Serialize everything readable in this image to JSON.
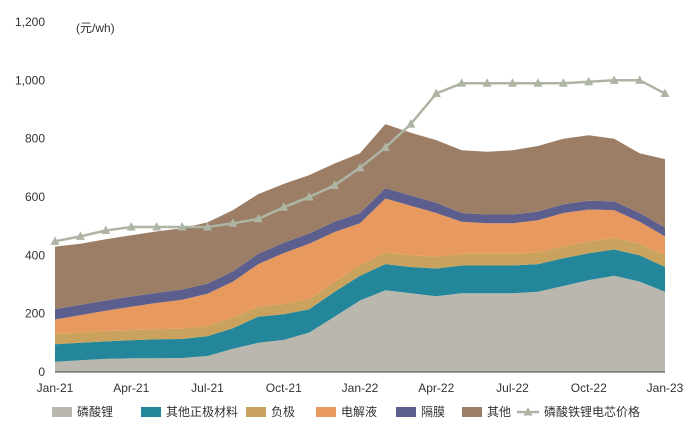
{
  "chart_data": {
    "type": "area",
    "unit_label": "(元/wh)",
    "y_ticks": [
      "0",
      "200",
      "400",
      "600",
      "800",
      "1,000",
      "1,200"
    ],
    "ylim": [
      0,
      1200
    ],
    "x_tick_labels": [
      "Jan-21",
      "Apr-21",
      "Jul-21",
      "Oct-21",
      "Jan-22",
      "Apr-22",
      "Jul-22",
      "Oct-22",
      "Jan-23"
    ],
    "x_tick_index": [
      0,
      3,
      6,
      9,
      12,
      15,
      18,
      21,
      24
    ],
    "stack_series": [
      {
        "name": "磷酸锂",
        "color": "#BAB8AE",
        "values": [
          35,
          40,
          45,
          47,
          47,
          48,
          55,
          80,
          100,
          110,
          135,
          190,
          245,
          280,
          270,
          260,
          270,
          270,
          270,
          275,
          295,
          315,
          330,
          310,
          275
        ]
      },
      {
        "name": "其他正极材料",
        "color": "#23869A",
        "values": [
          60,
          60,
          60,
          62,
          65,
          65,
          68,
          70,
          90,
          88,
          80,
          85,
          85,
          90,
          90,
          95,
          95,
          95,
          95,
          95,
          95,
          92,
          90,
          90,
          85
        ]
      },
      {
        "name": "负极",
        "color": "#C9A35E",
        "values": [
          35,
          35,
          35,
          35,
          35,
          35,
          35,
          35,
          35,
          35,
          35,
          35,
          35,
          40,
          40,
          40,
          40,
          40,
          40,
          40,
          40,
          40,
          40,
          40,
          40
        ]
      },
      {
        "name": "电解液",
        "color": "#E89A5E",
        "values": [
          50,
          60,
          70,
          80,
          90,
          100,
          110,
          125,
          145,
          175,
          190,
          170,
          145,
          185,
          170,
          150,
          110,
          105,
          105,
          110,
          115,
          110,
          95,
          75,
          65
        ]
      },
      {
        "name": "隔膜",
        "color": "#5C5E8E",
        "values": [
          35,
          35,
          35,
          35,
          35,
          35,
          35,
          35,
          35,
          35,
          35,
          35,
          35,
          35,
          35,
          35,
          30,
          30,
          30,
          30,
          30,
          30,
          30,
          30,
          30
        ]
      },
      {
        "name": "其他",
        "color": "#9C7E66",
        "values": [
          215,
          210,
          210,
          210,
          210,
          210,
          210,
          210,
          205,
          202,
          200,
          200,
          205,
          220,
          215,
          215,
          215,
          215,
          220,
          225,
          225,
          225,
          215,
          205,
          235
        ]
      }
    ],
    "line_series": {
      "name": "磷酸铁锂电芯价格",
      "color": "#AEB5A5",
      "values": [
        448,
        465,
        485,
        497,
        497,
        497,
        497,
        510,
        525,
        565,
        600,
        640,
        700,
        770,
        850,
        955,
        990,
        990,
        990,
        990,
        990,
        995,
        1000,
        1000,
        955
      ]
    },
    "legend_order": [
      "磷酸锂",
      "其他正极材料",
      "负极",
      "电解液",
      "隔膜",
      "其他",
      "磷酸铁锂电芯价格"
    ]
  }
}
